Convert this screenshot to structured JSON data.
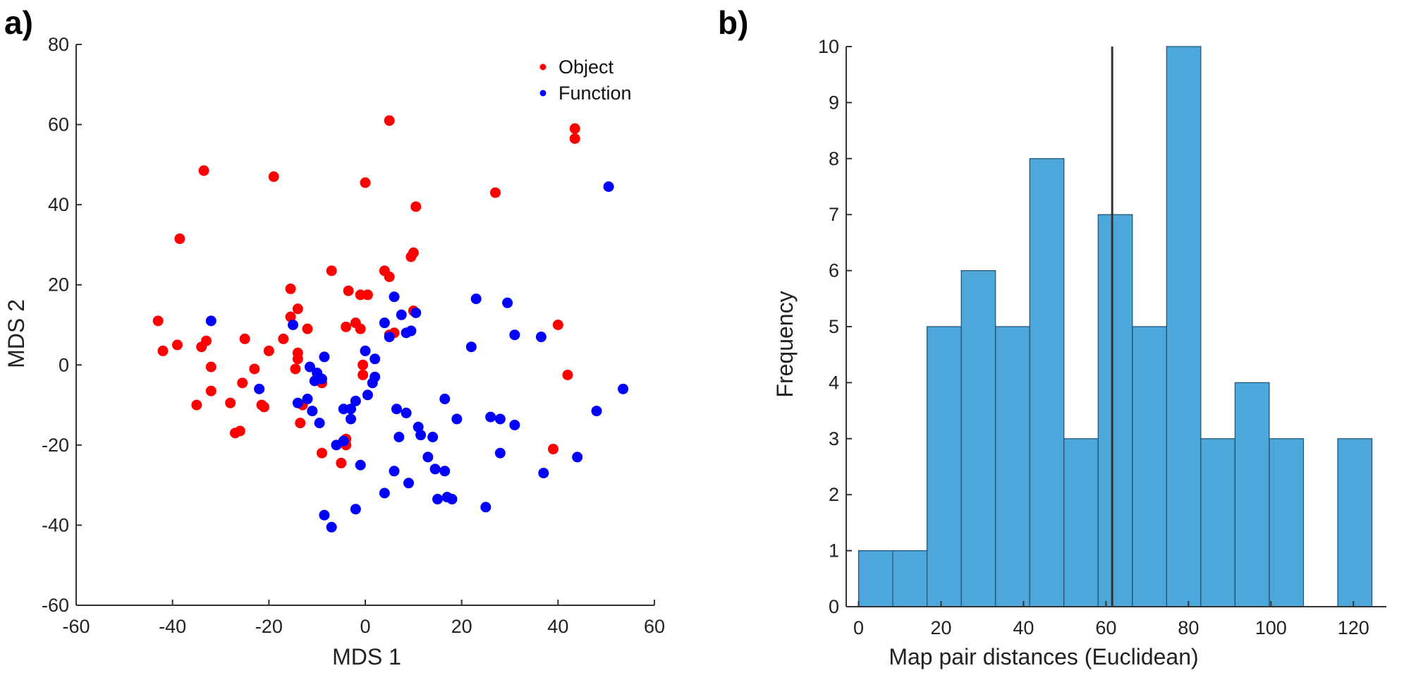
{
  "colors": {
    "object": "#ff0000",
    "function": "#0000ff",
    "bar": "#4ea7db",
    "bar_edge": "#1f4f6e",
    "mean_line": "#333333",
    "axis": "#333333"
  },
  "chart_data": [
    {
      "type": "scatter",
      "panel_label": "a)",
      "xlabel": "MDS 1",
      "ylabel": "MDS 2",
      "xlim": [
        -60,
        60
      ],
      "ylim": [
        -60,
        80
      ],
      "xticks": [
        -60,
        -40,
        -20,
        0,
        20,
        40,
        60
      ],
      "yticks": [
        -60,
        -40,
        -20,
        0,
        20,
        40,
        60,
        80
      ],
      "legend": {
        "position": "top-right"
      },
      "series": [
        {
          "name": "Object",
          "color": "#ff0000",
          "points": [
            [
              -43,
              11
            ],
            [
              -42,
              3.5
            ],
            [
              -39,
              5
            ],
            [
              -38.5,
              31.5
            ],
            [
              -35,
              -10
            ],
            [
              -34,
              4.5
            ],
            [
              -33.5,
              48.5
            ],
            [
              -33,
              6
            ],
            [
              -32,
              -0.5
            ],
            [
              -32,
              -6.5
            ],
            [
              -28,
              -9.5
            ],
            [
              -27,
              -17
            ],
            [
              -26,
              -16.5
            ],
            [
              -25.5,
              -4.5
            ],
            [
              -25,
              6.5
            ],
            [
              -23,
              -1
            ],
            [
              -21.5,
              -10
            ],
            [
              -21,
              -10.5
            ],
            [
              -20,
              3.5
            ],
            [
              -19,
              47
            ],
            [
              -17,
              6.5
            ],
            [
              -15.5,
              19
            ],
            [
              -15.5,
              12
            ],
            [
              -14.5,
              -1
            ],
            [
              -14,
              14
            ],
            [
              -14,
              3
            ],
            [
              -14,
              1.5
            ],
            [
              -13.5,
              -14.5
            ],
            [
              -13,
              -10
            ],
            [
              -12,
              9
            ],
            [
              -9,
              -4.5
            ],
            [
              -9,
              -22
            ],
            [
              -7,
              23.5
            ],
            [
              -5,
              -24.5
            ],
            [
              -4,
              -20
            ],
            [
              -4,
              -18.5
            ],
            [
              -4,
              9.5
            ],
            [
              -3.5,
              18.5
            ],
            [
              -2,
              10.5
            ],
            [
              -1,
              9
            ],
            [
              -1,
              17.5
            ],
            [
              -0.5,
              0
            ],
            [
              -0.5,
              -2.5
            ],
            [
              0,
              45.5
            ],
            [
              0.5,
              17.5
            ],
            [
              4,
              23.5
            ],
            [
              5,
              7.5
            ],
            [
              5,
              22
            ],
            [
              5,
              61
            ],
            [
              6,
              8
            ],
            [
              9.5,
              27
            ],
            [
              10,
              28
            ],
            [
              10,
              13.5
            ],
            [
              10.5,
              39.5
            ],
            [
              27,
              43
            ],
            [
              39,
              -21
            ],
            [
              40,
              10
            ],
            [
              42,
              -2.5
            ],
            [
              43.5,
              56.5
            ],
            [
              43.5,
              59
            ]
          ]
        },
        {
          "name": "Function",
          "color": "#0000ff",
          "points": [
            [
              -32,
              11
            ],
            [
              -22,
              -6
            ],
            [
              -15,
              10
            ],
            [
              -14,
              -9.5
            ],
            [
              -12,
              -8.5
            ],
            [
              -11.5,
              -0.5
            ],
            [
              -11,
              -11.5
            ],
            [
              -10.5,
              -4
            ],
            [
              -10,
              -2
            ],
            [
              -9.5,
              -14.5
            ],
            [
              -9,
              -3.5
            ],
            [
              -8.5,
              2
            ],
            [
              -8.5,
              -37.5
            ],
            [
              -7,
              -40.5
            ],
            [
              -6,
              -20
            ],
            [
              -4.5,
              -11
            ],
            [
              -4.5,
              -19
            ],
            [
              -3,
              -11
            ],
            [
              -3,
              -13.5
            ],
            [
              -2,
              -9
            ],
            [
              -2,
              -36
            ],
            [
              -1,
              -25
            ],
            [
              0,
              3.5
            ],
            [
              0.5,
              -7.5
            ],
            [
              1.5,
              -4.5
            ],
            [
              2,
              1.5
            ],
            [
              2,
              -3
            ],
            [
              4,
              10.5
            ],
            [
              4,
              -32
            ],
            [
              5,
              7
            ],
            [
              6,
              17
            ],
            [
              6,
              -26.5
            ],
            [
              6.5,
              -11
            ],
            [
              7,
              -18
            ],
            [
              7.5,
              12.5
            ],
            [
              8.5,
              -12
            ],
            [
              8.5,
              8
            ],
            [
              9,
              -29.5
            ],
            [
              9.5,
              8.5
            ],
            [
              10.5,
              13
            ],
            [
              11,
              -15.5
            ],
            [
              11.5,
              -17.5
            ],
            [
              13,
              -23
            ],
            [
              14,
              -18
            ],
            [
              14.5,
              -26
            ],
            [
              15,
              -33.5
            ],
            [
              16.5,
              -26.5
            ],
            [
              16.5,
              -8.5
            ],
            [
              17,
              -33
            ],
            [
              18,
              -33.5
            ],
            [
              19,
              -13.5
            ],
            [
              22,
              4.5
            ],
            [
              23,
              16.5
            ],
            [
              25,
              -35.5
            ],
            [
              26,
              -13
            ],
            [
              28,
              -13.5
            ],
            [
              28,
              -22
            ],
            [
              29.5,
              15.5
            ],
            [
              31,
              7.5
            ],
            [
              31,
              -15
            ],
            [
              36.5,
              7
            ],
            [
              37,
              -27
            ],
            [
              44,
              -23
            ],
            [
              48,
              -11.5
            ],
            [
              50.5,
              44.5
            ],
            [
              53.5,
              -6
            ]
          ]
        }
      ]
    },
    {
      "type": "bar",
      "panel_label": "b)",
      "xlabel": "Map pair distances (Euclidean)",
      "ylabel": "Frequency",
      "xlim": [
        -3,
        128
      ],
      "ylim": [
        0,
        10
      ],
      "xticks": [
        0,
        20,
        40,
        60,
        80,
        100,
        120
      ],
      "yticks": [
        0,
        1,
        2,
        3,
        4,
        5,
        6,
        7,
        8,
        9,
        10
      ],
      "bin_edges": [
        0,
        8.3,
        16.6,
        24.9,
        33.2,
        41.5,
        49.8,
        58.1,
        66.4,
        74.7,
        83,
        91.3,
        99.6,
        107.9,
        116.2,
        124.5
      ],
      "counts": [
        1,
        1,
        5,
        6,
        5,
        8,
        3,
        7,
        5,
        10,
        3,
        4,
        3,
        0,
        3
      ],
      "mean_line_x": 61.5
    }
  ]
}
